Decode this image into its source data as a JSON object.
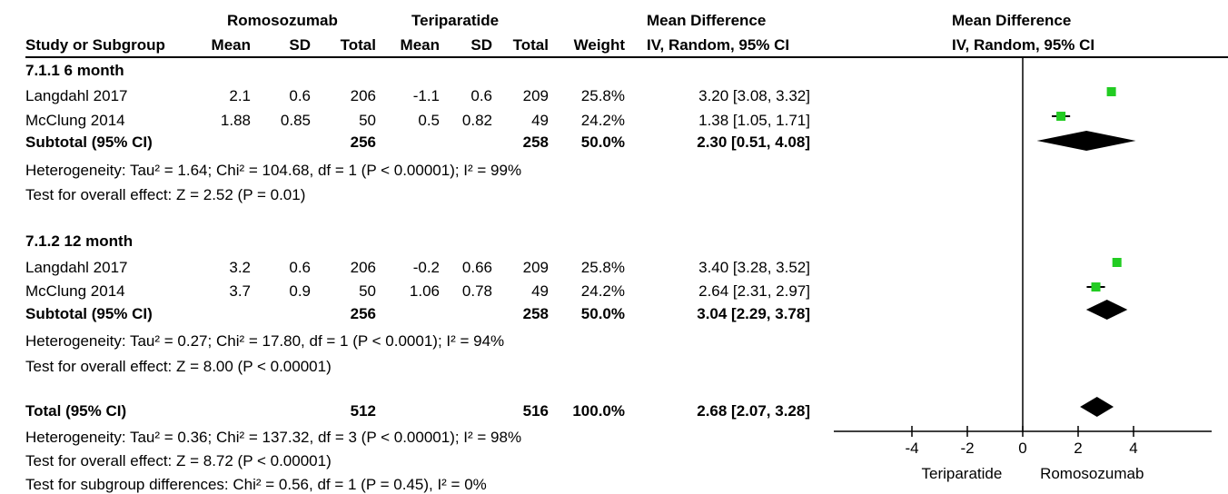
{
  "headers": {
    "group1": "Romosozumab",
    "group2": "Teriparatide",
    "md_table_top": "Mean Difference",
    "md_table_bottom": "IV, Random, 95% CI",
    "md_plot_top": "Mean Difference",
    "md_plot_bottom": "IV, Random, 95% CI",
    "study": "Study or Subgroup",
    "mean1": "Mean",
    "sd1": "SD",
    "total1": "Total",
    "mean2": "Mean",
    "sd2": "SD",
    "total2": "Total",
    "weight": "Weight"
  },
  "subgroups": [
    {
      "title": "7.1.1 6 month",
      "studies": [
        {
          "name": "Langdahl 2017",
          "mean1": "2.1",
          "sd1": "0.6",
          "total1": "206",
          "mean2": "-1.1",
          "sd2": "0.6",
          "total2": "209",
          "weight": "25.8%",
          "ci": "3.20 [3.08, 3.32]"
        },
        {
          "name": "McClung 2014",
          "mean1": "1.88",
          "sd1": "0.85",
          "total1": "50",
          "mean2": "0.5",
          "sd2": "0.82",
          "total2": "49",
          "weight": "24.2%",
          "ci": "1.38 [1.05, 1.71]"
        }
      ],
      "subtotal": {
        "label": "Subtotal (95% CI)",
        "total1": "256",
        "total2": "258",
        "weight": "50.0%",
        "ci": "2.30 [0.51, 4.08]"
      },
      "heterogeneity": "Heterogeneity: Tau² = 1.64; Chi² = 104.68, df = 1 (P < 0.00001); I² = 99%",
      "overall": "Test for overall effect: Z = 2.52 (P = 0.01)"
    },
    {
      "title": "7.1.2 12 month",
      "studies": [
        {
          "name": "Langdahl 2017",
          "mean1": "3.2",
          "sd1": "0.6",
          "total1": "206",
          "mean2": "-0.2",
          "sd2": "0.66",
          "total2": "209",
          "weight": "25.8%",
          "ci": "3.40 [3.28, 3.52]"
        },
        {
          "name": "McClung 2014",
          "mean1": "3.7",
          "sd1": "0.9",
          "total1": "50",
          "mean2": "1.06",
          "sd2": "0.78",
          "total2": "49",
          "weight": "24.2%",
          "ci": "2.64 [2.31, 2.97]"
        }
      ],
      "subtotal": {
        "label": "Subtotal (95% CI)",
        "total1": "256",
        "total2": "258",
        "weight": "50.0%",
        "ci": "3.04 [2.29, 3.78]"
      },
      "heterogeneity": "Heterogeneity: Tau² = 0.27; Chi² = 17.80, df = 1 (P < 0.0001); I² = 94%",
      "overall": "Test for overall effect: Z = 8.00 (P < 0.00001)"
    }
  ],
  "total": {
    "label": "Total (95% CI)",
    "total1": "512",
    "total2": "516",
    "weight": "100.0%",
    "ci": "2.68 [2.07, 3.28]",
    "heterogeneity": "Heterogeneity: Tau² = 0.36; Chi² = 137.32, df = 3 (P < 0.00001); I² = 98%",
    "overall": "Test for overall effect: Z = 8.72 (P < 0.00001)",
    "subgroup_diff": "Test for subgroup differences: Chi² = 0.56, df = 1 (P = 0.45), I² = 0%"
  },
  "chart_data": {
    "type": "scatter",
    "subtype": "forest-plot",
    "xlim": [
      -6,
      6
    ],
    "xticks": [
      -4,
      -2,
      0,
      2,
      4
    ],
    "xtick_labels": [
      "-4",
      "-2",
      "0",
      "2",
      "4"
    ],
    "left_label": "Teriparatide",
    "right_label": "Romosozumab",
    "marker_color": "#22cc22",
    "diamond_color": "#000000",
    "points": [
      {
        "name": "Langdahl 2017 (6 month)",
        "md": 3.2,
        "lo": 3.08,
        "hi": 3.32
      },
      {
        "name": "McClung 2014 (6 month)",
        "md": 1.38,
        "lo": 1.05,
        "hi": 1.71
      },
      {
        "name": "Langdahl 2017 (12 month)",
        "md": 3.4,
        "lo": 3.28,
        "hi": 3.52
      },
      {
        "name": "McClung 2014 (12 month)",
        "md": 2.64,
        "lo": 2.31,
        "hi": 2.97
      }
    ],
    "diamonds": [
      {
        "name": "Subtotal 6 month",
        "md": 2.3,
        "lo": 0.51,
        "hi": 4.08
      },
      {
        "name": "Subtotal 12 month",
        "md": 3.04,
        "lo": 2.29,
        "hi": 3.78
      },
      {
        "name": "Total",
        "md": 2.68,
        "lo": 2.07,
        "hi": 3.28
      }
    ]
  }
}
